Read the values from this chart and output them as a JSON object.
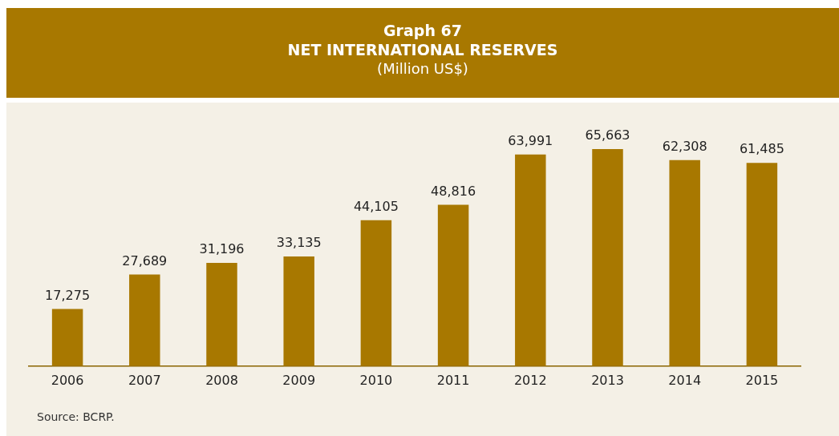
{
  "chart_data": {
    "type": "bar",
    "title": "Graph 67\nNET INTERNATIONAL RESERVES",
    "subtitle": "(Million US$)",
    "categories": [
      "2006",
      "2007",
      "2008",
      "2009",
      "2010",
      "2011",
      "2012",
      "2013",
      "2014",
      "2015"
    ],
    "values": [
      17275,
      27689,
      31196,
      33135,
      44105,
      48816,
      63991,
      65663,
      62308,
      61485
    ],
    "value_labels": [
      "17,275",
      "27,689",
      "31,196",
      "33,135",
      "44,105",
      "48,816",
      "63,991",
      "65,663",
      "62,308",
      "61,485"
    ],
    "color": "#a87800",
    "grid": false,
    "legend": false,
    "annotations": [
      "Source: BCRP."
    ]
  }
}
